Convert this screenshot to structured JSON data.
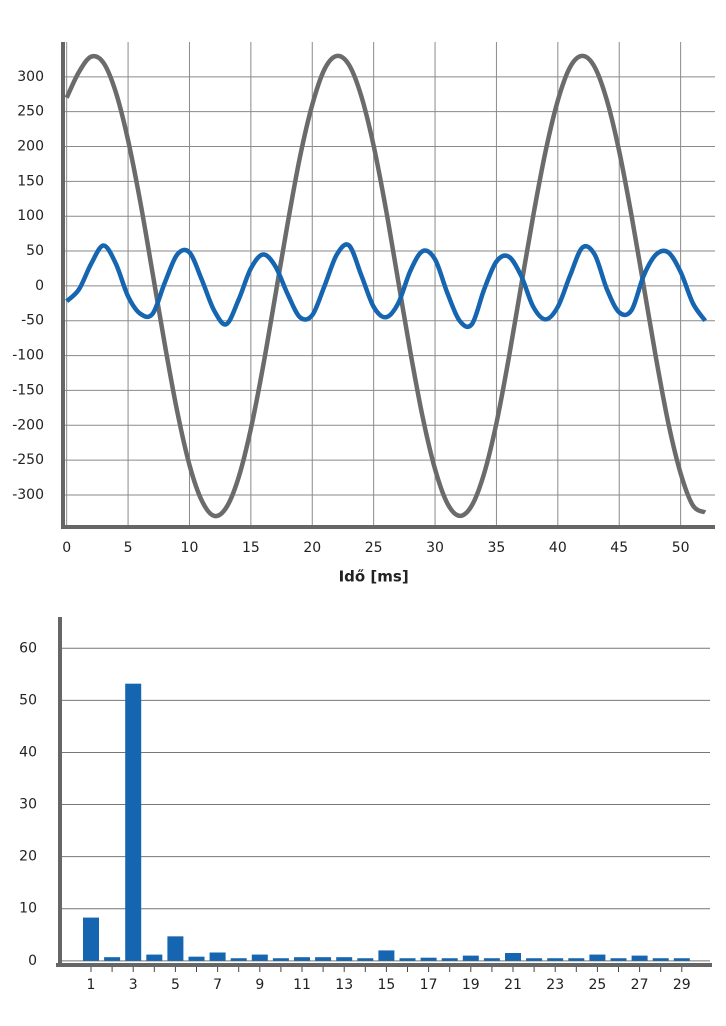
{
  "chart_data": [
    {
      "type": "line",
      "x_label": "Idő [ms]",
      "x": [
        0,
        1,
        2,
        3,
        4,
        5,
        6,
        7,
        8,
        9,
        10,
        11,
        12,
        13,
        14,
        15,
        16,
        17,
        18,
        19,
        20,
        21,
        22,
        23,
        24,
        25,
        26,
        27,
        28,
        29,
        30,
        31,
        32,
        33,
        34,
        35,
        36,
        37,
        38,
        39,
        40,
        41,
        42,
        43,
        44,
        45,
        46,
        47,
        48,
        49,
        50,
        51,
        52
      ],
      "series": [
        {
          "color": "#6b6b6b",
          "values": [
            270,
            307,
            329,
            320,
            278,
            209,
            120,
            18,
            -85,
            -180,
            -257,
            -308,
            -330,
            -318,
            -275,
            -205,
            -115,
            -13,
            90,
            185,
            260,
            311,
            330,
            317,
            272,
            201,
            110,
            7,
            -96,
            -189,
            -263,
            -312,
            -330,
            -315,
            -269,
            -197,
            -104,
            -1,
            101,
            193,
            266,
            314,
            330,
            314,
            266,
            193,
            101,
            -1,
            -104,
            -197,
            -269,
            -315,
            -325
          ]
        },
        {
          "color": "#1565b0",
          "values": [
            -22,
            -5,
            32,
            58,
            32,
            -15,
            -40,
            -40,
            5,
            45,
            48,
            9,
            -35,
            -55,
            -20,
            25,
            45,
            28,
            -12,
            -45,
            -42,
            0,
            45,
            58,
            15,
            -30,
            -45,
            -25,
            22,
            50,
            38,
            -10,
            -50,
            -55,
            -5,
            35,
            42,
            15,
            -30,
            -48,
            -30,
            15,
            55,
            45,
            -5,
            -38,
            -35,
            15,
            45,
            48,
            20,
            -25,
            -50
          ]
        }
      ],
      "xlim": [
        -0.3,
        52.8
      ],
      "xticks": [
        0,
        5,
        10,
        15,
        20,
        25,
        30,
        35,
        40,
        45,
        50
      ],
      "ylim": [
        -346,
        350
      ],
      "yticks": [
        -300,
        -250,
        -200,
        -150,
        -100,
        -50,
        0,
        50,
        100,
        150,
        200,
        250,
        300
      ],
      "grid": true
    },
    {
      "type": "bar",
      "color": "#1565b0",
      "categories": [
        "1",
        null,
        "3",
        null,
        "5",
        null,
        "7",
        null,
        "9",
        null,
        "11",
        null,
        "13",
        null,
        "15",
        null,
        "17",
        null,
        "19",
        null,
        "21",
        null,
        "23",
        null,
        "25",
        null,
        "27",
        null,
        "29"
      ],
      "values": [
        8.3,
        0.7,
        53.2,
        1.2,
        4.7,
        0.8,
        1.6,
        0.5,
        1.2,
        0.5,
        0.7,
        0.7,
        0.7,
        0.5,
        2.0,
        0.5,
        0.6,
        0.5,
        1.0,
        0.5,
        1.5,
        0.5,
        0.5,
        0.5,
        1.2,
        0.5,
        1.0,
        0.5,
        0.5
      ],
      "ylim": [
        -0.8,
        66
      ],
      "yticks": [
        0,
        10,
        20,
        30,
        40,
        50,
        60
      ],
      "grid": true
    }
  ]
}
